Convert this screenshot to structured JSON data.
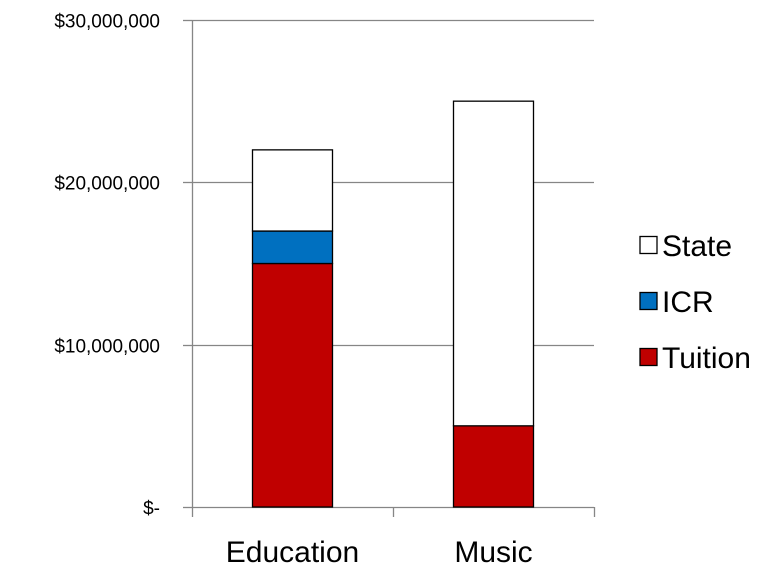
{
  "chart_data": {
    "type": "bar",
    "stacked": true,
    "categories": [
      "Education",
      "Music"
    ],
    "series": [
      {
        "name": "Tuition",
        "color": "#C00000",
        "values": [
          15000000,
          5000000
        ]
      },
      {
        "name": "ICR",
        "color": "#0070C0",
        "values": [
          2000000,
          0
        ]
      },
      {
        "name": "State",
        "color": "#FFFFFF",
        "values": [
          5000000,
          20000000
        ]
      }
    ],
    "ylim": [
      0,
      30000000
    ],
    "yticks": [
      0,
      10000000,
      20000000,
      30000000
    ],
    "ytick_labels": [
      "$-",
      "$10,000,000",
      "$20,000,000",
      "$30,000,000"
    ],
    "grid": true,
    "legend": {
      "position": "right",
      "order": [
        "State",
        "ICR",
        "Tuition"
      ]
    },
    "title": "",
    "xlabel": "",
    "ylabel": ""
  }
}
